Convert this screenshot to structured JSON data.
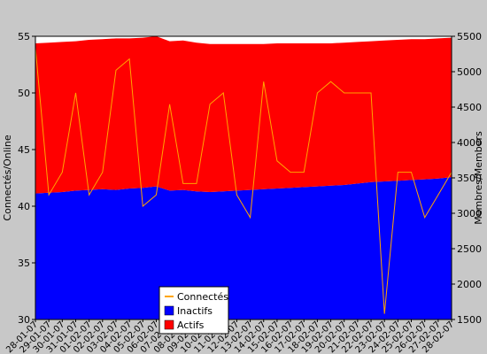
{
  "chart_data": {
    "type": "area",
    "title": "",
    "y_left_label": "Connectés/Online",
    "y_right_label": "Membres/Members",
    "y_left_range": [
      30,
      55
    ],
    "y_right_range": [
      1500,
      5500
    ],
    "y_left_ticks": [
      30,
      35,
      40,
      45,
      50,
      55
    ],
    "y_right_ticks": [
      1500,
      2000,
      2500,
      3000,
      3500,
      4000,
      4500,
      5000,
      5500
    ],
    "grid": false,
    "legend_placement": "bottom-left",
    "colors": {
      "background": "#c8c8c8",
      "plot_background": "#ffffff",
      "inactifs": "#0000ff",
      "actifs": "#ff0000",
      "connectes": "#ffa500"
    },
    "x": [
      "28-01-07",
      "29-01-07",
      "30-01-07",
      "31-01-07",
      "01-02-07",
      "02-02-07",
      "03-02-07",
      "04-02-07",
      "05-02-07",
      "06-02-07",
      "07-02-07",
      "08-02-07",
      "09-02-07",
      "10-02-07",
      "11-02-07",
      "12-02-07",
      "13-02-07",
      "14-02-07",
      "15-02-07",
      "16-02-07",
      "17-02-07",
      "18-02-07",
      "19-02-07",
      "20-02-07",
      "21-02-07",
      "22-02-07",
      "23-02-07",
      "24-02-07",
      "25-02-07",
      "26-02-07",
      "27-02-07",
      "28-02-07"
    ],
    "series": [
      {
        "name": "Connectés",
        "axis": "left",
        "values": [
          54,
          41,
          43,
          50,
          41,
          43,
          52,
          53,
          40,
          41,
          49,
          42,
          42,
          49,
          50,
          41,
          39,
          51,
          44,
          43,
          43,
          50,
          51,
          50,
          50,
          50,
          30.5,
          43,
          43,
          39,
          41,
          43
        ]
      },
      {
        "name": "Inactifs",
        "axis": "right",
        "values": [
          3280,
          3290,
          3300,
          3320,
          3330,
          3340,
          3330,
          3350,
          3360,
          3380,
          3320,
          3330,
          3310,
          3300,
          3310,
          3320,
          3330,
          3340,
          3350,
          3360,
          3370,
          3380,
          3390,
          3400,
          3420,
          3440,
          3450,
          3460,
          3470,
          3480,
          3490,
          3510
        ]
      },
      {
        "name": "Actifs",
        "axis": "right",
        "values": [
          2120,
          2120,
          2120,
          2110,
          2120,
          2120,
          2140,
          2120,
          2120,
          2120,
          2110,
          2110,
          2100,
          2090,
          2080,
          2070,
          2060,
          2050,
          2050,
          2040,
          2030,
          2020,
          2010,
          2010,
          2000,
          1990,
          1990,
          1990,
          1990,
          1980,
          1980,
          1970
        ]
      }
    ],
    "legend": [
      "Connectés",
      "Inactifs",
      "Actifs"
    ]
  }
}
